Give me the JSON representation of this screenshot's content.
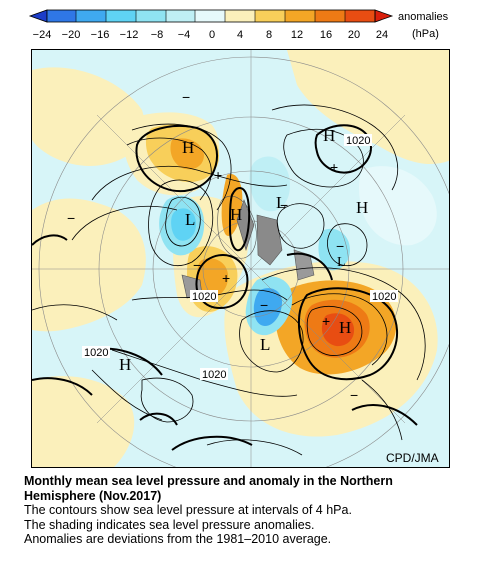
{
  "legend": {
    "ticks": [
      "−24",
      "−20",
      "−16",
      "−12",
      "−8",
      "−4",
      "0",
      "4",
      "8",
      "12",
      "16",
      "20",
      "24"
    ],
    "label_line1": "anomalies",
    "label_line2": "(hPa)",
    "colors": [
      "#1c3dc8",
      "#2f77e6",
      "#3fa9f0",
      "#5fd3f4",
      "#a8ecf4",
      "#d7f5f8",
      "#fbf0bb",
      "#f8cf5a",
      "#f3a626",
      "#ee7a15",
      "#e84d12",
      "#d91f0b"
    ]
  },
  "map": {
    "labels": {
      "high": "H",
      "low": "L",
      "plus": "+",
      "minus": "−",
      "isobar_1020": "1020"
    },
    "credit": "CPD/JMA"
  },
  "caption": {
    "title_line1": "Monthly mean sea level pressure and anomaly in the Northern",
    "title_line2": "Hemisphere (Nov.2017)",
    "line1": "The contours show sea level pressure at intervals of 4 hPa.",
    "line2": "The shading indicates sea level pressure anomalies.",
    "line3": "Anomalies are deviations from the 1981–2010 average."
  }
}
